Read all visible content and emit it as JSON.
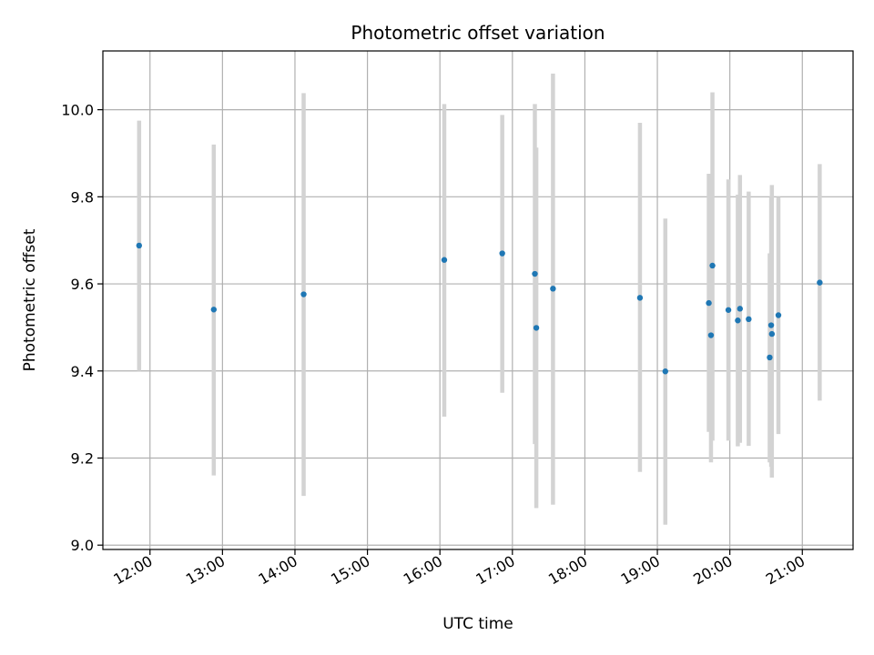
{
  "chart_data": {
    "type": "scatter",
    "title": "Photometric offset variation",
    "xlabel": "UTC time",
    "ylabel": "Photometric offset",
    "x_unit": "hour of day (UTC)",
    "xlim": [
      11.35,
      21.7
    ],
    "ylim": [
      8.99,
      10.135
    ],
    "grid": true,
    "legend": "none",
    "x_ticks": [
      12,
      13,
      14,
      15,
      16,
      17,
      18,
      19,
      20,
      21
    ],
    "x_tick_labels": [
      "12:00",
      "13:00",
      "14:00",
      "15:00",
      "16:00",
      "17:00",
      "18:00",
      "19:00",
      "20:00",
      "21:00"
    ],
    "y_ticks": [
      9.0,
      9.2,
      9.4,
      9.6,
      9.8,
      10.0
    ],
    "y_tick_labels": [
      "9.0",
      "9.2",
      "9.4",
      "9.6",
      "9.8",
      "10.0"
    ],
    "colors": {
      "point": "#1f77b4",
      "error_bar": "#d3d3d3",
      "grid": "#b0b0b0"
    },
    "points": [
      {
        "x": 11.85,
        "y": 9.688,
        "ylow": 9.4,
        "yhigh": 9.975
      },
      {
        "x": 12.88,
        "y": 9.541,
        "ylow": 9.16,
        "yhigh": 9.92
      },
      {
        "x": 14.12,
        "y": 9.576,
        "ylow": 9.113,
        "yhigh": 10.038
      },
      {
        "x": 16.06,
        "y": 9.655,
        "ylow": 9.295,
        "yhigh": 10.013
      },
      {
        "x": 16.86,
        "y": 9.67,
        "ylow": 9.35,
        "yhigh": 9.988
      },
      {
        "x": 17.31,
        "y": 9.623,
        "ylow": 9.232,
        "yhigh": 10.013
      },
      {
        "x": 17.33,
        "y": 9.499,
        "ylow": 9.085,
        "yhigh": 9.913
      },
      {
        "x": 17.56,
        "y": 9.589,
        "ylow": 9.093,
        "yhigh": 10.083
      },
      {
        "x": 18.76,
        "y": 9.568,
        "ylow": 9.168,
        "yhigh": 9.97
      },
      {
        "x": 19.11,
        "y": 9.399,
        "ylow": 9.047,
        "yhigh": 9.75
      },
      {
        "x": 19.71,
        "y": 9.556,
        "ylow": 9.26,
        "yhigh": 9.853
      },
      {
        "x": 19.74,
        "y": 9.482,
        "ylow": 9.19,
        "yhigh": 9.775
      },
      {
        "x": 19.76,
        "y": 9.642,
        "ylow": 9.24,
        "yhigh": 10.04
      },
      {
        "x": 19.98,
        "y": 9.54,
        "ylow": 9.24,
        "yhigh": 9.84
      },
      {
        "x": 20.11,
        "y": 9.516,
        "ylow": 9.227,
        "yhigh": 9.805
      },
      {
        "x": 20.14,
        "y": 9.543,
        "ylow": 9.235,
        "yhigh": 9.85
      },
      {
        "x": 20.26,
        "y": 9.519,
        "ylow": 9.228,
        "yhigh": 9.812
      },
      {
        "x": 20.55,
        "y": 9.431,
        "ylow": 9.19,
        "yhigh": 9.67
      },
      {
        "x": 20.57,
        "y": 9.505,
        "ylow": 9.18,
        "yhigh": 9.8
      },
      {
        "x": 20.58,
        "y": 9.485,
        "ylow": 9.155,
        "yhigh": 9.827
      },
      {
        "x": 20.67,
        "y": 9.528,
        "ylow": 9.255,
        "yhigh": 9.8
      },
      {
        "x": 21.24,
        "y": 9.603,
        "ylow": 9.332,
        "yhigh": 9.875
      }
    ]
  }
}
